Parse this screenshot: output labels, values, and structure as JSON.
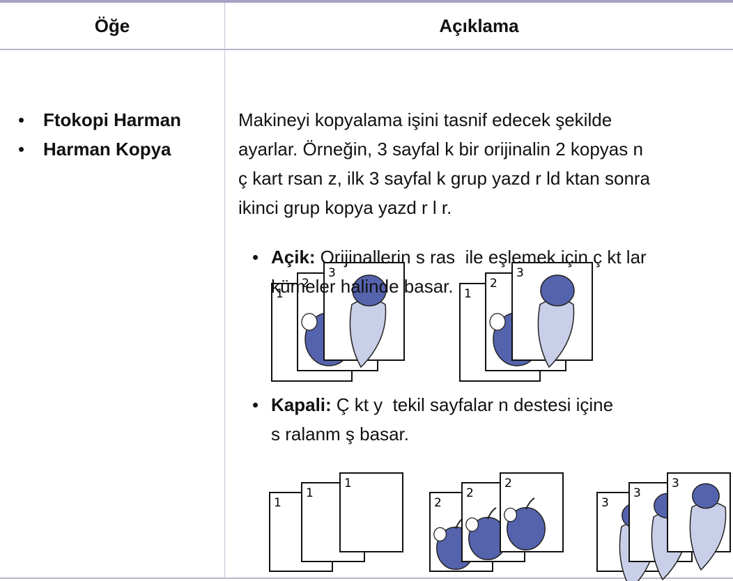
{
  "header": {
    "columns": [
      "Öğe",
      "Açıklama"
    ]
  },
  "rows": [
    {
      "items": [
        "Ftokopi Harman",
        "Harman Kopya"
      ],
      "description": {
        "lines": [
          "Makineyi kopyalama işini tasnif edecek şekilde",
          "ayarlar. Örneğin, 3 sayfal k bir orijinalin 2 kopyas n",
          "ç kart rsan z, ilk 3 sayfal k grup yazd r ld ktan sonra",
          "ikinci grup kopya yazd r l r."
        ],
        "bullets": [
          {
            "label": "Açik:",
            "lines": [
              "Orijinallerin s ras  ile eşlemek için ç kt lar",
              "kümeler halinde basar."
            ]
          },
          {
            "label": "Kapali:",
            "lines": [
              "Ç kt y  tekil sayfalar n destesi içine",
              "s ralanm ş basar."
            ]
          }
        ]
      },
      "illustrations": {
        "collated": [
          "1",
          "2",
          "3"
        ],
        "uncollated": [
          "1",
          "2",
          "3"
        ]
      }
    }
  ]
}
